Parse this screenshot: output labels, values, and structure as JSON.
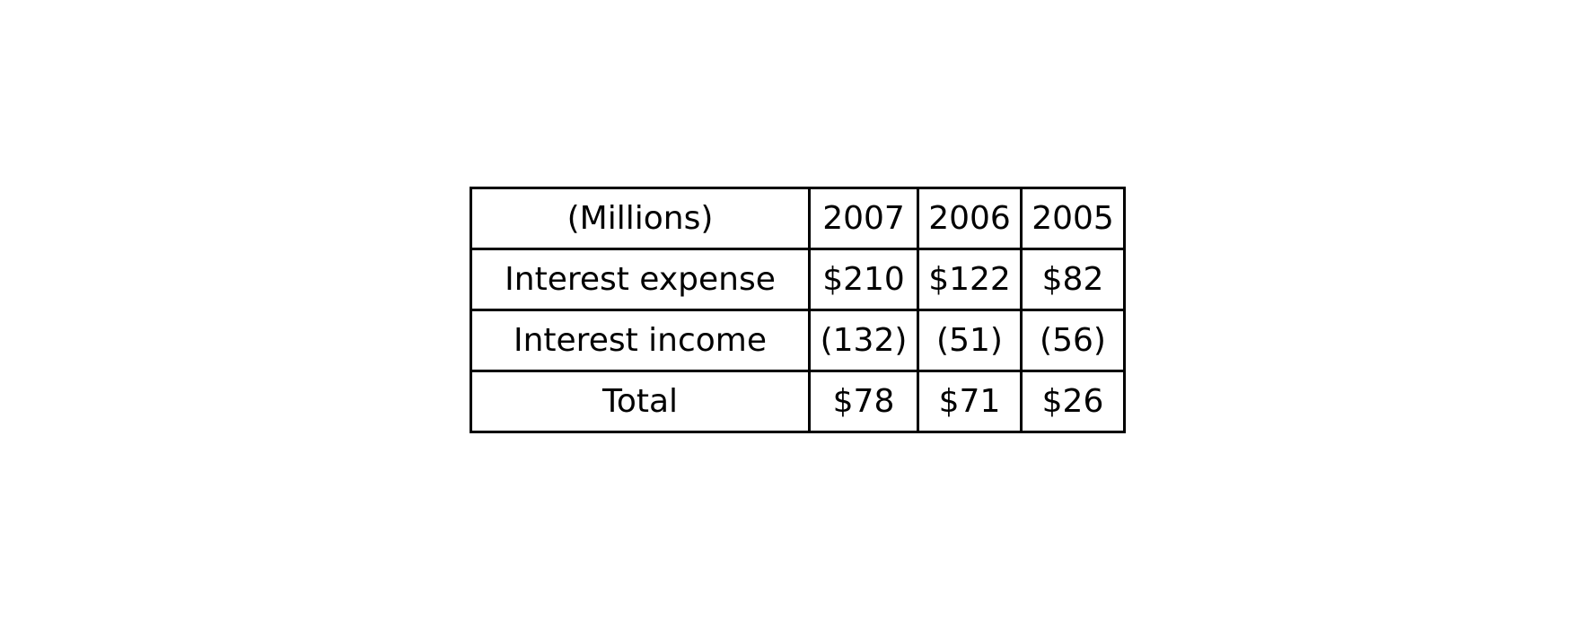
{
  "table": {
    "header": [
      "(Millions)",
      "2007",
      "2006",
      "2005"
    ],
    "rows": [
      [
        "Interest expense",
        "$210",
        "$122",
        "$82"
      ],
      [
        "Interest income",
        "(132)",
        "(51)",
        "(56)"
      ],
      [
        "Total",
        "$78",
        "$71",
        "$26"
      ]
    ]
  }
}
